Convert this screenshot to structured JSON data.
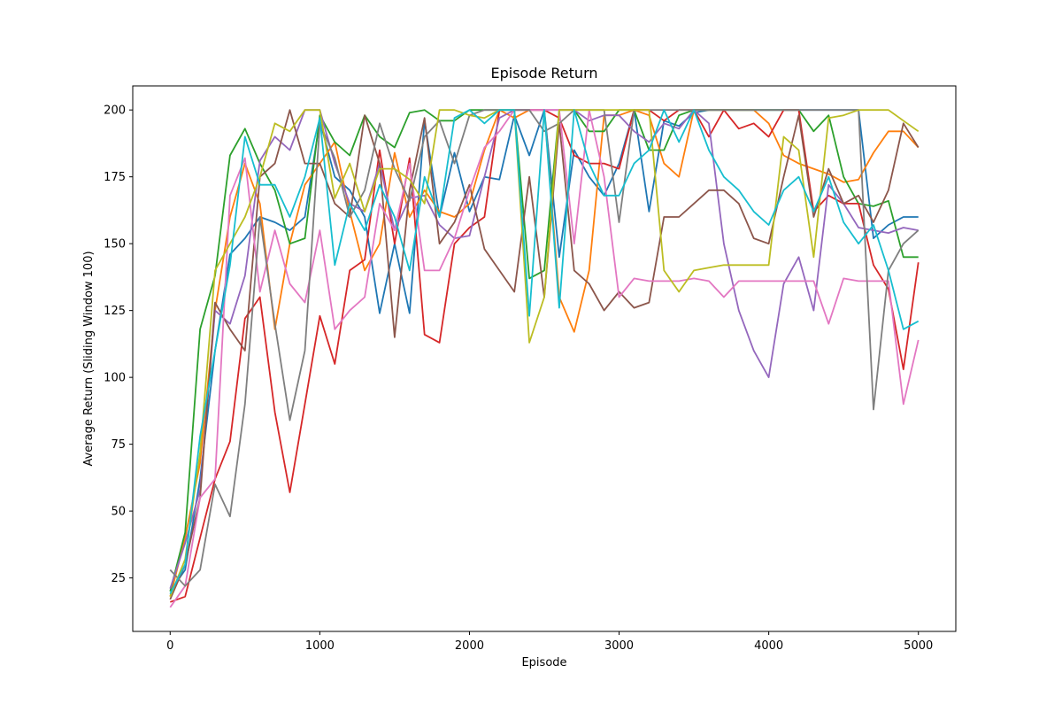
{
  "chart_data": {
    "type": "line",
    "title": "Episode Return",
    "xlabel": "Episode",
    "ylabel": "Average Return (Sliding Window 100)",
    "xlim": [
      -250,
      5250
    ],
    "ylim": [
      5,
      209
    ],
    "xticks": [
      0,
      1000,
      2000,
      3000,
      4000,
      5000
    ],
    "yticks": [
      25,
      50,
      75,
      100,
      125,
      150,
      175,
      200
    ],
    "grid": false,
    "legend": "none",
    "series": [
      {
        "color": "#1f77b4",
        "x": [
          0,
          100,
          200,
          300,
          400,
          500,
          600,
          700,
          800,
          900,
          1000,
          1100,
          1200,
          1300,
          1400,
          1500,
          1600,
          1700,
          1800,
          1900,
          2000,
          2100,
          2200,
          2300,
          2400,
          2500,
          2600,
          2700,
          2800,
          2900,
          3000,
          3100,
          3200,
          3300,
          3400,
          3500,
          3600,
          3700,
          3800,
          3900,
          4000,
          4100,
          4200,
          4300,
          4400,
          4500,
          4600,
          4700,
          4800,
          4900,
          5000
        ],
        "y": [
          20,
          28,
          62,
          110,
          146,
          152,
          160,
          158,
          155,
          160,
          196,
          175,
          170,
          160,
          124,
          150,
          124,
          196,
          160,
          184,
          162,
          175,
          174,
          198,
          183,
          200,
          145,
          185,
          175,
          168,
          180,
          200,
          162,
          196,
          194,
          199,
          200,
          200,
          200,
          200,
          200,
          200,
          200,
          200,
          200,
          200,
          200,
          152,
          157,
          160,
          160
        ]
      },
      {
        "color": "#ff7f0e",
        "x": [
          0,
          100,
          200,
          300,
          400,
          500,
          600,
          700,
          800,
          900,
          1000,
          1100,
          1200,
          1300,
          1400,
          1500,
          1600,
          1700,
          1800,
          1900,
          2000,
          2100,
          2200,
          2300,
          2400,
          2500,
          2600,
          2700,
          2800,
          2900,
          3000,
          3100,
          3200,
          3300,
          3400,
          3500,
          3600,
          3700,
          3800,
          3900,
          4000,
          4100,
          4200,
          4300,
          4400,
          4500,
          4600,
          4700,
          4800,
          4900,
          5000
        ],
        "y": [
          18,
          40,
          68,
          125,
          160,
          180,
          165,
          118,
          150,
          172,
          180,
          188,
          162,
          140,
          150,
          184,
          160,
          170,
          162,
          160,
          165,
          185,
          200,
          197,
          200,
          200,
          130,
          117,
          140,
          198,
          198,
          200,
          198,
          180,
          175,
          200,
          200,
          200,
          200,
          200,
          195,
          183,
          180,
          178,
          176,
          173,
          174,
          184,
          192,
          192,
          186
        ]
      },
      {
        "color": "#2ca02c",
        "x": [
          0,
          100,
          200,
          300,
          400,
          500,
          600,
          700,
          800,
          900,
          1000,
          1100,
          1200,
          1300,
          1400,
          1500,
          1600,
          1700,
          1800,
          1900,
          2000,
          2100,
          2200,
          2300,
          2400,
          2500,
          2600,
          2700,
          2800,
          2900,
          3000,
          3100,
          3200,
          3300,
          3400,
          3500,
          3600,
          3700,
          3800,
          3900,
          4000,
          4100,
          4200,
          4300,
          4400,
          4500,
          4600,
          4700,
          4800,
          4900,
          5000
        ],
        "y": [
          20,
          42,
          118,
          138,
          183,
          193,
          180,
          170,
          150,
          152,
          198,
          188,
          183,
          198,
          190,
          186,
          199,
          200,
          196,
          196,
          200,
          200,
          200,
          200,
          137,
          140,
          200,
          200,
          192,
          192,
          200,
          200,
          185,
          185,
          198,
          200,
          200,
          200,
          200,
          200,
          200,
          200,
          200,
          192,
          198,
          175,
          165,
          164,
          166,
          145,
          145
        ]
      },
      {
        "color": "#d62728",
        "x": [
          0,
          100,
          200,
          300,
          400,
          500,
          600,
          700,
          800,
          900,
          1000,
          1100,
          1200,
          1300,
          1400,
          1500,
          1600,
          1700,
          1800,
          1900,
          2000,
          2100,
          2200,
          2300,
          2400,
          2500,
          2600,
          2700,
          2800,
          2900,
          3000,
          3100,
          3200,
          3300,
          3400,
          3500,
          3600,
          3700,
          3800,
          3900,
          4000,
          4100,
          4200,
          4300,
          4400,
          4500,
          4600,
          4700,
          4800,
          4900,
          5000
        ],
        "y": [
          16,
          18,
          40,
          62,
          76,
          122,
          130,
          87,
          57,
          90,
          123,
          105,
          140,
          144,
          185,
          150,
          182,
          116,
          113,
          150,
          156,
          160,
          200,
          200,
          200,
          200,
          197,
          183,
          180,
          180,
          178,
          200,
          200,
          196,
          200,
          200,
          190,
          200,
          193,
          195,
          190,
          200,
          200,
          162,
          168,
          165,
          165,
          142,
          133,
          103,
          143
        ]
      },
      {
        "color": "#9467bd",
        "x": [
          0,
          100,
          200,
          300,
          400,
          500,
          600,
          700,
          800,
          900,
          1000,
          1100,
          1200,
          1300,
          1400,
          1500,
          1600,
          1700,
          1800,
          1900,
          2000,
          2100,
          2200,
          2300,
          2400,
          2500,
          2600,
          2700,
          2800,
          2900,
          3000,
          3100,
          3200,
          3300,
          3400,
          3500,
          3600,
          3700,
          3800,
          3900,
          4000,
          4100,
          4200,
          4300,
          4400,
          4500,
          4600,
          4700,
          4800,
          4900,
          5000
        ],
        "y": [
          21,
          38,
          58,
          125,
          120,
          138,
          181,
          190,
          185,
          200,
          200,
          180,
          165,
          162,
          180,
          155,
          167,
          168,
          157,
          152,
          153,
          175,
          197,
          200,
          200,
          200,
          200,
          200,
          196,
          198,
          198,
          192,
          188,
          195,
          193,
          200,
          195,
          150,
          125,
          110,
          100,
          135,
          145,
          125,
          172,
          165,
          156,
          155,
          154,
          156,
          155
        ]
      },
      {
        "color": "#8c564b",
        "x": [
          0,
          100,
          200,
          300,
          400,
          500,
          600,
          700,
          800,
          900,
          1000,
          1100,
          1200,
          1300,
          1400,
          1500,
          1600,
          1700,
          1800,
          1900,
          2000,
          2100,
          2200,
          2300,
          2400,
          2500,
          2600,
          2700,
          2800,
          2900,
          3000,
          3100,
          3200,
          3300,
          3400,
          3500,
          3600,
          3700,
          3800,
          3900,
          4000,
          4100,
          4200,
          4300,
          4400,
          4500,
          4600,
          4700,
          4800,
          4900,
          5000
        ],
        "y": [
          17,
          30,
          55,
          128,
          118,
          110,
          175,
          180,
          200,
          180,
          180,
          165,
          160,
          198,
          180,
          115,
          170,
          197,
          150,
          158,
          172,
          148,
          140,
          132,
          175,
          130,
          195,
          140,
          135,
          125,
          132,
          126,
          128,
          160,
          160,
          165,
          170,
          170,
          165,
          152,
          150,
          175,
          198,
          160,
          178,
          165,
          168,
          158,
          170,
          195,
          186
        ]
      },
      {
        "color": "#e377c2",
        "x": [
          0,
          100,
          200,
          300,
          400,
          500,
          600,
          700,
          800,
          900,
          1000,
          1100,
          1200,
          1300,
          1400,
          1500,
          1600,
          1700,
          1800,
          1900,
          2000,
          2100,
          2200,
          2300,
          2400,
          2500,
          2600,
          2700,
          2800,
          2900,
          3000,
          3100,
          3200,
          3300,
          3400,
          3500,
          3600,
          3700,
          3800,
          3900,
          4000,
          4100,
          4200,
          4300,
          4400,
          4500,
          4600,
          4700,
          4800,
          4900,
          5000
        ],
        "y": [
          14,
          22,
          55,
          62,
          168,
          182,
          132,
          155,
          135,
          128,
          155,
          118,
          125,
          130,
          165,
          155,
          180,
          140,
          140,
          152,
          170,
          186,
          192,
          200,
          200,
          200,
          200,
          150,
          200,
          175,
          130,
          137,
          136,
          136,
          136,
          137,
          136,
          130,
          136,
          136,
          136,
          136,
          136,
          136,
          120,
          137,
          136,
          136,
          136,
          90,
          114
        ]
      },
      {
        "color": "#7f7f7f",
        "x": [
          0,
          100,
          200,
          300,
          400,
          500,
          600,
          700,
          800,
          900,
          1000,
          1100,
          1200,
          1300,
          1400,
          1500,
          1600,
          1700,
          1800,
          1900,
          2000,
          2100,
          2200,
          2300,
          2400,
          2500,
          2600,
          2700,
          2800,
          2900,
          3000,
          3100,
          3200,
          3300,
          3400,
          3500,
          3600,
          3700,
          3800,
          3900,
          4000,
          4100,
          4200,
          4300,
          4400,
          4500,
          4600,
          4700,
          4800,
          4900,
          5000
        ],
        "y": [
          28,
          22,
          28,
          60,
          48,
          90,
          160,
          120,
          84,
          110,
          195,
          182,
          160,
          170,
          195,
          178,
          166,
          190,
          196,
          180,
          198,
          200,
          200,
          200,
          200,
          192,
          195,
          200,
          200,
          200,
          158,
          200,
          200,
          200,
          200,
          200,
          200,
          200,
          200,
          200,
          200,
          200,
          200,
          200,
          200,
          200,
          200,
          88,
          140,
          150,
          155
        ]
      },
      {
        "color": "#bcbd22",
        "x": [
          0,
          100,
          200,
          300,
          400,
          500,
          600,
          700,
          800,
          900,
          1000,
          1100,
          1200,
          1300,
          1400,
          1500,
          1600,
          1700,
          1800,
          1900,
          2000,
          2100,
          2200,
          2300,
          2400,
          2500,
          2600,
          2700,
          2800,
          2900,
          3000,
          3100,
          3200,
          3300,
          3400,
          3500,
          3600,
          3700,
          3800,
          3900,
          4000,
          4100,
          4200,
          4300,
          4400,
          4500,
          4600,
          4700,
          4800,
          4900,
          5000
        ],
        "y": [
          18,
          32,
          72,
          140,
          150,
          160,
          175,
          195,
          192,
          200,
          200,
          167,
          180,
          162,
          178,
          178,
          174,
          165,
          200,
          200,
          198,
          197,
          200,
          200,
          113,
          130,
          200,
          200,
          200,
          200,
          200,
          200,
          200,
          140,
          132,
          140,
          141,
          142,
          142,
          142,
          142,
          190,
          185,
          145,
          197,
          198,
          200,
          200,
          200,
          196,
          192
        ]
      },
      {
        "color": "#17becf",
        "x": [
          0,
          100,
          200,
          300,
          400,
          500,
          600,
          700,
          800,
          900,
          1000,
          1100,
          1200,
          1300,
          1400,
          1500,
          1600,
          1700,
          1800,
          1900,
          2000,
          2100,
          2200,
          2300,
          2400,
          2500,
          2600,
          2700,
          2800,
          2900,
          3000,
          3100,
          3200,
          3300,
          3400,
          3500,
          3600,
          3700,
          3800,
          3900,
          4000,
          4100,
          4200,
          4300,
          4400,
          4500,
          4600,
          4700,
          4800,
          4900,
          5000
        ],
        "y": [
          19,
          30,
          78,
          110,
          142,
          190,
          172,
          172,
          160,
          175,
          197,
          142,
          165,
          155,
          172,
          160,
          140,
          175,
          160,
          197,
          200,
          195,
          200,
          200,
          123,
          200,
          126,
          200,
          180,
          168,
          168,
          180,
          185,
          200,
          188,
          200,
          185,
          175,
          170,
          162,
          157,
          170,
          175,
          162,
          175,
          158,
          150,
          157,
          140,
          118,
          121
        ]
      }
    ]
  }
}
